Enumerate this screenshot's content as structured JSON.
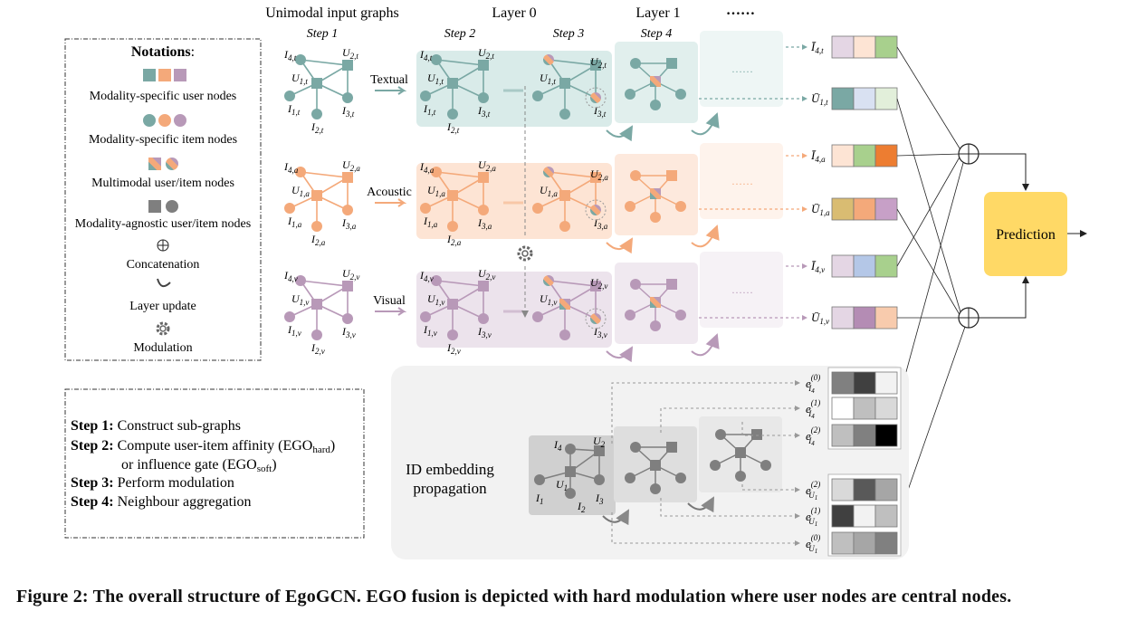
{
  "headers": {
    "unimodal": "Unimodal input graphs",
    "layer0": "Layer 0",
    "layer1": "Layer 1",
    "more": "……",
    "step1": "Step 1",
    "step2": "Step 2",
    "step3": "Step 3",
    "step4": "Step 4"
  },
  "notations": {
    "title": "Notations",
    "items": [
      "Modality-specific user nodes",
      "Modality-specific item nodes",
      "Multimodal user/item nodes",
      "Modality-agnostic user/item nodes",
      "Concatenation",
      "Layer update",
      "Modulation"
    ]
  },
  "steps": [
    {
      "label": "Step 1:",
      "text": "Construct sub-graphs"
    },
    {
      "label": "Step 2:",
      "text": "Compute user-item affinity (EGO",
      "sub": "hard",
      "tail": ")"
    },
    {
      "label": "",
      "text": "or influence gate (EGO",
      "sub": "soft",
      "tail": ")"
    },
    {
      "label": "Step 3:",
      "text": "Perform modulation"
    },
    {
      "label": "Step 4:",
      "text": "Neighbour aggregation"
    }
  ],
  "modalities": [
    {
      "name": "Textual",
      "sub": "t",
      "color": "#7aa8a4",
      "light": "#d9ebe9"
    },
    {
      "name": "Acoustic",
      "sub": "a",
      "color": "#f4a97a",
      "light": "#fde4d4"
    },
    {
      "name": "Visual",
      "sub": "v",
      "color": "#b899b8",
      "light": "#ece3ec"
    }
  ],
  "node_labels": {
    "I4": "I",
    "U2": "U",
    "U1": "U",
    "I1": "I",
    "I3": "I",
    "I2": "I"
  },
  "outputs": [
    {
      "label": "Ī",
      "sub": "4,t"
    },
    {
      "label": "Ū",
      "sub": "1,t"
    },
    {
      "label": "Ī",
      "sub": "4,a"
    },
    {
      "label": "Ū",
      "sub": "1,a"
    },
    {
      "label": "Ī",
      "sub": "4,v"
    },
    {
      "label": "Ū",
      "sub": "1,v"
    }
  ],
  "prediction": "Prediction",
  "id_embedding": {
    "line1": "ID embedding",
    "line2": "propagation"
  },
  "id_outputs": [
    {
      "label": "e",
      "sub": "I",
      "subsub": "4",
      "sup": "(0)"
    },
    {
      "label": "e",
      "sub": "I",
      "subsub": "4",
      "sup": "(1)"
    },
    {
      "label": "e",
      "sub": "I",
      "subsub": "4",
      "sup": "(2)"
    },
    {
      "label": "e",
      "sub": "U",
      "subsub": "1",
      "sup": "(2)"
    },
    {
      "label": "e",
      "sub": "U",
      "subsub": "1",
      "sup": "(1)"
    },
    {
      "label": "e",
      "sub": "U",
      "subsub": "1",
      "sup": "(0)"
    }
  ],
  "caption": "Figure 2: The overall structure of EgoGCN. EGO fusion is depicted with hard modulation where user nodes are central nodes.",
  "colors": {
    "prediction": "#ffd966",
    "gray_node": "#7f7f7f",
    "gray_panel": "#d6d6d6"
  }
}
